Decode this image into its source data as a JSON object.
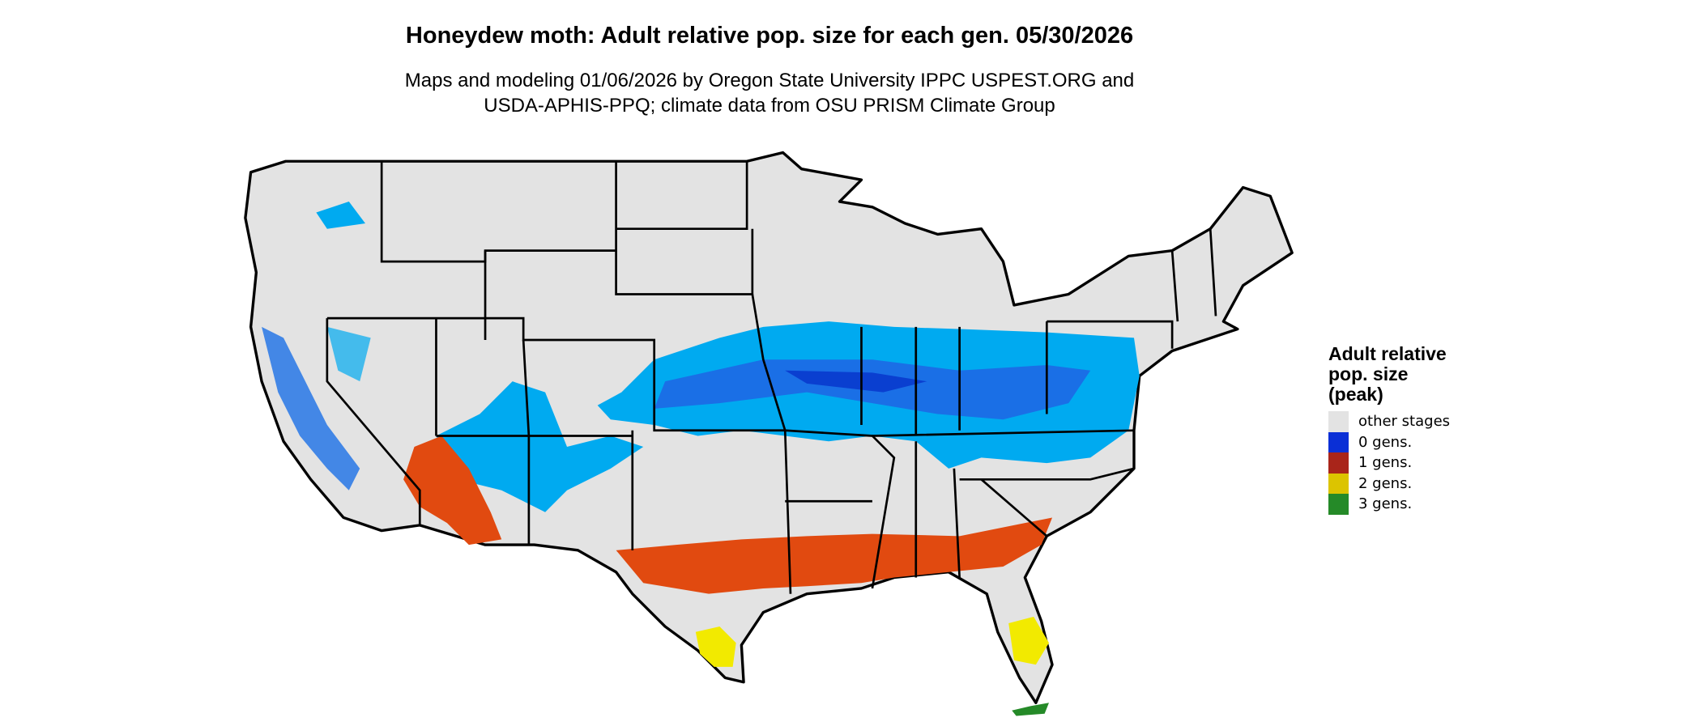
{
  "title": "Honeydew moth: Adult relative pop. size for each gen. 05/30/2026",
  "subtitle_line1": "Maps and modeling 01/06/2026 by Oregon State University IPPC USPEST.ORG and",
  "subtitle_line2": "USDA-APHIS-PPQ; climate data from OSU PRISM Climate Group",
  "legend": {
    "title_line1": "Adult relative",
    "title_line2": "pop. size",
    "title_line3": "(peak)",
    "items": [
      {
        "label": "other stages",
        "color": "#e3e3e3"
      },
      {
        "label": "0 gens.",
        "color": "#0a2fd6"
      },
      {
        "label": "1 gens.",
        "color": "#a9251a"
      },
      {
        "label": "2 gens.",
        "color": "#dcc400"
      },
      {
        "label": "3 gens.",
        "color": "#258a28"
      }
    ]
  },
  "colors": {
    "land": "#e3e3e3",
    "light_blue": "#00aaf0",
    "mid_blue": "#1a6fe6",
    "orange_red": "#e14a10",
    "yellow": "#f2ea00",
    "border": "#000000"
  }
}
